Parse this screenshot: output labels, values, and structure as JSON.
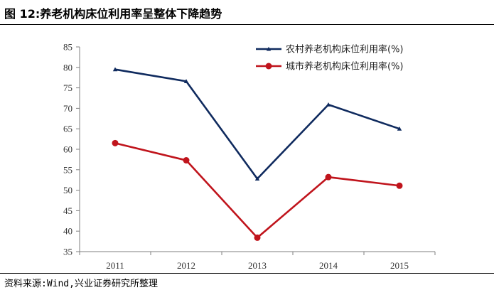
{
  "figure": {
    "title": "图 12:养老机构床位利用率呈整体下降趋势",
    "source": "资料来源:Wind,兴业证券研究所整理"
  },
  "chart_data": {
    "type": "line",
    "title": "",
    "xlabel": "",
    "ylabel": "",
    "categories": [
      "2011",
      "2012",
      "2013",
      "2014",
      "2015"
    ],
    "ylim": [
      35,
      85
    ],
    "yticks": [
      35,
      40,
      45,
      50,
      55,
      60,
      65,
      70,
      75,
      80,
      85
    ],
    "grid": false,
    "legend_position": "top-right",
    "series": [
      {
        "name": "农村养老机构床位利用率(%)",
        "values": [
          79.5,
          76.6,
          52.8,
          70.9,
          65.0
        ],
        "color": "#0f2a5e",
        "marker": "triangle"
      },
      {
        "name": "城市养老机构床位利用率(%)",
        "values": [
          61.5,
          57.3,
          38.4,
          53.2,
          51.1
        ],
        "color": "#c0141c",
        "marker": "circle"
      }
    ]
  }
}
